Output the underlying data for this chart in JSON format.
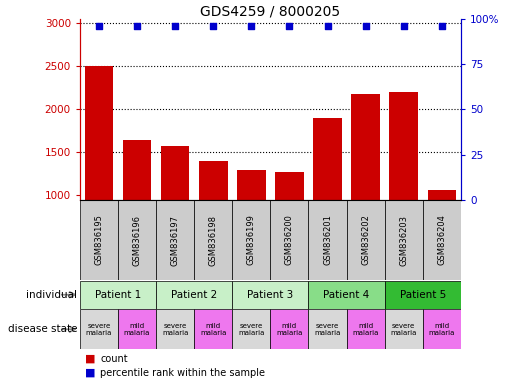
{
  "title": "GDS4259 / 8000205",
  "samples": [
    "GSM836195",
    "GSM836196",
    "GSM836197",
    "GSM836198",
    "GSM836199",
    "GSM836200",
    "GSM836201",
    "GSM836202",
    "GSM836203",
    "GSM836204"
  ],
  "counts": [
    2500,
    1640,
    1570,
    1400,
    1290,
    1270,
    1900,
    2180,
    2200,
    1060
  ],
  "percentile_y_left": [
    2975,
    2975,
    2975,
    2975,
    2975,
    2975,
    2975,
    2975,
    2975,
    2975
  ],
  "ylim_left": [
    950,
    3050
  ],
  "ylim_right": [
    0,
    100
  ],
  "yticks_left": [
    1000,
    1500,
    2000,
    2500,
    3000
  ],
  "yticks_right": [
    0,
    25,
    50,
    75,
    100
  ],
  "patients": [
    {
      "label": "Patient 1",
      "cols": [
        0,
        1
      ],
      "color": "#c8f0c8"
    },
    {
      "label": "Patient 2",
      "cols": [
        2,
        3
      ],
      "color": "#c8f0c8"
    },
    {
      "label": "Patient 3",
      "cols": [
        4,
        5
      ],
      "color": "#c8f0c8"
    },
    {
      "label": "Patient 4",
      "cols": [
        6,
        7
      ],
      "color": "#88dd88"
    },
    {
      "label": "Patient 5",
      "cols": [
        8,
        9
      ],
      "color": "#33bb33"
    }
  ],
  "disease_states": [
    {
      "label": "severe\nmalaria",
      "col": 0,
      "color": "#d8d8d8"
    },
    {
      "label": "mild\nmalaria",
      "col": 1,
      "color": "#ee77ee"
    },
    {
      "label": "severe\nmalaria",
      "col": 2,
      "color": "#d8d8d8"
    },
    {
      "label": "mild\nmalaria",
      "col": 3,
      "color": "#ee77ee"
    },
    {
      "label": "severe\nmalaria",
      "col": 4,
      "color": "#d8d8d8"
    },
    {
      "label": "mild\nmalaria",
      "col": 5,
      "color": "#ee77ee"
    },
    {
      "label": "severe\nmalaria",
      "col": 6,
      "color": "#d8d8d8"
    },
    {
      "label": "mild\nmalaria",
      "col": 7,
      "color": "#ee77ee"
    },
    {
      "label": "severe\nmalaria",
      "col": 8,
      "color": "#d8d8d8"
    },
    {
      "label": "mild\nmalaria",
      "col": 9,
      "color": "#ee77ee"
    }
  ],
  "bar_color": "#cc0000",
  "dot_color": "#0000cc",
  "left_axis_color": "#cc0000",
  "right_axis_color": "#0000cc",
  "sample_bg_color": "#cccccc",
  "legend_count_color": "#cc0000",
  "legend_pct_color": "#0000cc"
}
